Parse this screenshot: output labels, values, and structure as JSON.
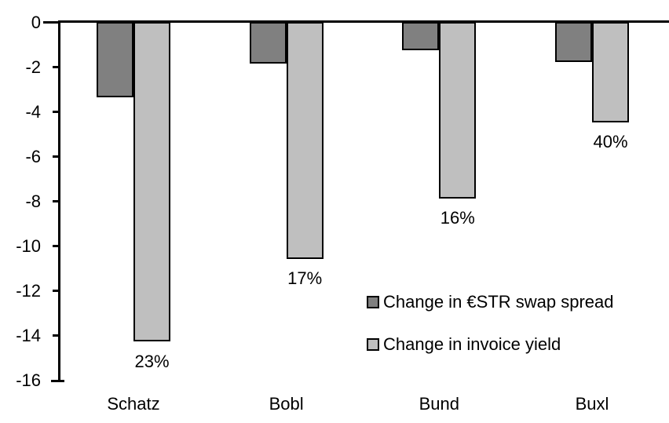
{
  "chart_data": {
    "type": "bar",
    "orientation": "vertical",
    "title": "",
    "xlabel": "",
    "ylabel": "",
    "categories": [
      "Schatz",
      "Bobl",
      "Bund",
      "Buxl"
    ],
    "series": [
      {
        "name": "Change in €STR swap spread",
        "color": "#808080",
        "values": [
          -3.3,
          -1.8,
          -1.2,
          -1.7
        ]
      },
      {
        "name": "Change in invoice yield",
        "color": "#bfbfbf",
        "values": [
          -14.2,
          -10.5,
          -7.8,
          -4.4
        ],
        "point_labels": [
          "23%",
          "17%",
          "16%",
          "40%"
        ]
      }
    ],
    "ylim": [
      -16,
      0
    ],
    "yticks": [
      0,
      -2,
      -4,
      -6,
      -8,
      -10,
      -12,
      -14,
      -16
    ],
    "grid": false,
    "legend_position": "inside-lower-right",
    "bar_border_color": "#000000",
    "axis_color": "#000000",
    "background_color": "#ffffff"
  }
}
